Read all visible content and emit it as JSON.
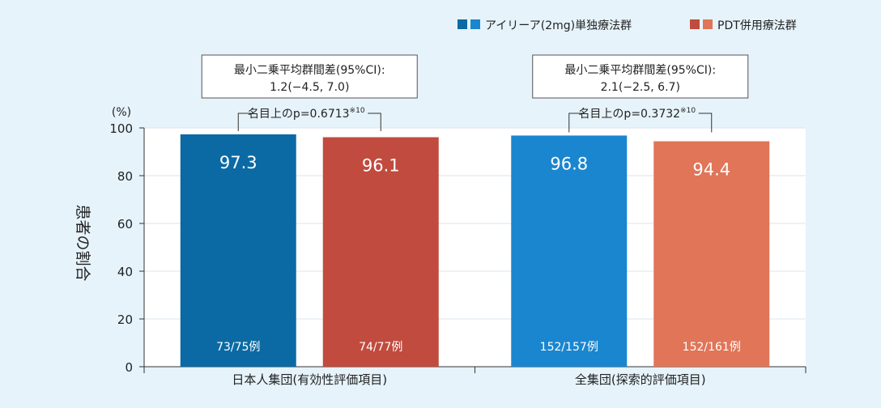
{
  "chart_data": {
    "type": "bar",
    "ylabel": "患者の割合",
    "yunit": "(%)",
    "ylim": [
      0,
      100
    ],
    "yticks": [
      0,
      20,
      40,
      60,
      80,
      100
    ],
    "grid": true,
    "legend_position": "top-right",
    "categories": [
      "日本人集団(有効性評価項目)",
      "全集団(探索的評価項目)"
    ],
    "series": [
      {
        "name": "アイリーア(2mg)単独療法群",
        "values": [
          97.3,
          96.8
        ],
        "counts": [
          "73/75例",
          "152/157例"
        ]
      },
      {
        "name": "PDT併用療法群",
        "values": [
          96.1,
          94.4
        ],
        "counts": [
          "74/77例",
          "152/161例"
        ]
      }
    ],
    "bar_colors": [
      [
        "#0b6aa4",
        "#c04b3e"
      ],
      [
        "#1a86cf",
        "#e07558"
      ]
    ],
    "legend_swatches": [
      [
        "#0b6aa4",
        "#1a86cf"
      ],
      [
        "#c04b3e",
        "#e07558"
      ]
    ],
    "annotations": [
      {
        "box_line1": "最小二乗平均群間差(95%CI):",
        "box_line2": "1.2(−4.5, 7.0)",
        "pvalue": "名目上のp=0.6713",
        "note": "※10"
      },
      {
        "box_line1": "最小二乗平均群間差(95%CI):",
        "box_line2": "2.1(−2.5, 6.7)",
        "pvalue": "名目上のp=0.3732",
        "note": "※10"
      }
    ]
  }
}
